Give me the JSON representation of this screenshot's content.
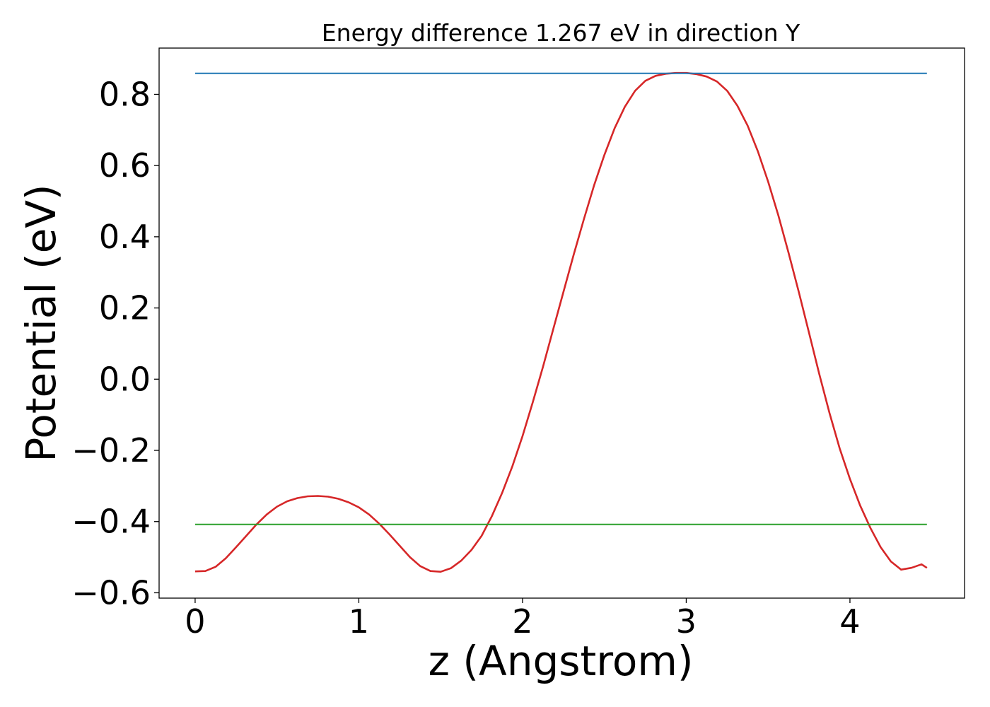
{
  "chart_data": {
    "type": "line",
    "title": "Energy difference 1.267 eV in direction Y",
    "xlabel": "z (Angstrom)",
    "ylabel": "Potential (eV)",
    "xlim": [
      -0.22,
      4.7
    ],
    "ylim": [
      -0.615,
      0.93
    ],
    "xticks": [
      0,
      1,
      2,
      3,
      4
    ],
    "xtick_labels": [
      "0",
      "1",
      "2",
      "3",
      "4"
    ],
    "yticks": [
      -0.6,
      -0.4,
      -0.2,
      0.0,
      0.2,
      0.4,
      0.6,
      0.8
    ],
    "ytick_labels": [
      "−0.6",
      "−0.4",
      "−0.2",
      "0.0",
      "0.2",
      "0.4",
      "0.6",
      "0.8"
    ],
    "grid": false,
    "series": [
      {
        "color": "#d62728",
        "x": [
          0.0,
          0.0625,
          0.125,
          0.1875,
          0.25,
          0.3125,
          0.375,
          0.4375,
          0.5,
          0.5625,
          0.625,
          0.6875,
          0.75,
          0.8125,
          0.875,
          0.9375,
          1.0,
          1.0625,
          1.125,
          1.1875,
          1.25,
          1.3125,
          1.375,
          1.4375,
          1.5,
          1.5625,
          1.625,
          1.6875,
          1.75,
          1.8125,
          1.875,
          1.9375,
          2.0,
          2.0625,
          2.125,
          2.1875,
          2.25,
          2.3125,
          2.375,
          2.4375,
          2.5,
          2.5625,
          2.625,
          2.6875,
          2.75,
          2.8125,
          2.875,
          2.9375,
          3.0,
          3.0625,
          3.125,
          3.1875,
          3.25,
          3.3125,
          3.375,
          3.4375,
          3.5,
          3.5625,
          3.625,
          3.6875,
          3.75,
          3.8125,
          3.875,
          3.9375,
          4.0,
          4.0625,
          4.125,
          4.1875,
          4.25,
          4.3125,
          4.375,
          4.4375,
          4.47
        ],
        "y": [
          -0.54,
          -0.539,
          -0.527,
          -0.503,
          -0.472,
          -0.44,
          -0.408,
          -0.38,
          -0.358,
          -0.343,
          -0.334,
          -0.329,
          -0.328,
          -0.33,
          -0.336,
          -0.346,
          -0.36,
          -0.38,
          -0.406,
          -0.436,
          -0.468,
          -0.5,
          -0.525,
          -0.539,
          -0.541,
          -0.531,
          -0.51,
          -0.48,
          -0.44,
          -0.385,
          -0.32,
          -0.245,
          -0.16,
          -0.065,
          0.035,
          0.14,
          0.245,
          0.35,
          0.45,
          0.545,
          0.63,
          0.705,
          0.765,
          0.81,
          0.838,
          0.852,
          0.858,
          0.86,
          0.86,
          0.857,
          0.85,
          0.836,
          0.81,
          0.768,
          0.712,
          0.64,
          0.555,
          0.46,
          0.355,
          0.245,
          0.13,
          0.015,
          -0.095,
          -0.195,
          -0.28,
          -0.355,
          -0.418,
          -0.472,
          -0.512,
          -0.535,
          -0.53,
          -0.52,
          -0.53
        ]
      },
      {
        "color": "#1f77b4",
        "x": [
          0.0,
          4.47
        ],
        "y": [
          0.859,
          0.859
        ]
      },
      {
        "color": "#2ca02c",
        "x": [
          0.0,
          4.47
        ],
        "y": [
          -0.408,
          -0.408
        ]
      }
    ]
  }
}
